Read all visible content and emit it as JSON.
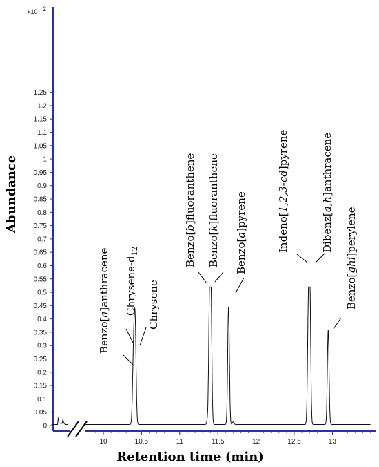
{
  "chart_data": {
    "type": "line",
    "title": "",
    "xlabel": "Retention time (min)",
    "ylabel": "Abundance",
    "y_scale_prefix": "x10",
    "y_scale_exponent": "2",
    "xlim": [
      9.32,
      13.5
    ],
    "ylim": [
      0,
      1.35
    ],
    "x_ticks": [
      "10",
      "10.5",
      "11",
      "11.5",
      "12",
      "12.5",
      "13"
    ],
    "y_ticks": [
      "0",
      "0.05",
      "0.1",
      "0.15",
      "0.2",
      "0.25",
      "0.3",
      "0.35",
      "0.4",
      "0.45",
      "0.5",
      "0.55",
      "0.6",
      "0.65",
      "0.7",
      "0.75",
      "0.8",
      "0.85",
      "0.9",
      "0.95",
      "1",
      "1.05",
      "1.1",
      "1.15",
      "1.2",
      "1.25"
    ],
    "axis_break": true,
    "grid": false,
    "line_color": "#111111",
    "axis_color": "#27359a",
    "initial_segment": {
      "x": [
        9.32,
        9.38,
        9.4,
        9.41,
        9.42,
        9.44,
        9.46,
        9.47,
        9.48,
        9.5,
        9.53
      ],
      "y": [
        0.004,
        0.004,
        0.004,
        0.03,
        0.01,
        0.008,
        0.008,
        0.024,
        0.01,
        0.004,
        0.004
      ]
    },
    "peaks": [
      {
        "name": "Benzo[a]anthracene",
        "rt": 10.39,
        "height": 0.16
      },
      {
        "name": "Chrysene-d12",
        "rt": 10.405,
        "height": 0.24
      },
      {
        "name": "Chrysene",
        "rt": 10.42,
        "height": 0.285
      },
      {
        "name": "Benzo[b]fluoranthene",
        "rt": 11.39,
        "height": 0.43
      },
      {
        "name": "Benzo[k]fluoranthene",
        "rt": 11.41,
        "height": 0.465
      },
      {
        "name": "Benzo[a]pyrene",
        "rt": 11.64,
        "height": 0.44
      },
      {
        "name": "Indeno[1,2,3-cd]pyrene",
        "rt": 12.685,
        "height": 0.4
      },
      {
        "name": "Dibenz[a,h]anthracene",
        "rt": 12.705,
        "height": 0.495
      },
      {
        "name": "Benzo[ghi]perylene",
        "rt": 12.945,
        "height": 0.355
      }
    ],
    "annotations": [
      {
        "parts": [
          {
            "t": "Benzo["
          },
          {
            "t": "a",
            "italic": true
          },
          {
            "t": "]anthracene"
          }
        ],
        "peak": 0
      },
      {
        "parts": [
          {
            "t": "Chrysene-d"
          },
          {
            "t": "12",
            "sub": true
          }
        ],
        "peak": 1
      },
      {
        "parts": [
          {
            "t": "Chrysene"
          }
        ],
        "peak": 2
      },
      {
        "parts": [
          {
            "t": "Benzo["
          },
          {
            "t": "b",
            "italic": true
          },
          {
            "t": "]fluoranthene"
          }
        ],
        "peak": 3
      },
      {
        "parts": [
          {
            "t": "Benzo["
          },
          {
            "t": "k",
            "italic": true
          },
          {
            "t": "]fluoranthene"
          }
        ],
        "peak": 4
      },
      {
        "parts": [
          {
            "t": "Benzo["
          },
          {
            "t": "a",
            "italic": true
          },
          {
            "t": "]pyrene"
          }
        ],
        "peak": 5
      },
      {
        "parts": [
          {
            "t": "Indeno["
          },
          {
            "t": "1,2,3-cd",
            "italic": true
          },
          {
            "t": "]pyrene"
          }
        ],
        "peak": 6
      },
      {
        "parts": [
          {
            "t": "Dibenz["
          },
          {
            "t": "a,h",
            "italic": true
          },
          {
            "t": "]anthracene"
          }
        ],
        "peak": 7
      },
      {
        "parts": [
          {
            "t": "Benzo["
          },
          {
            "t": "ghi",
            "italic": true
          },
          {
            "t": "]perylene"
          }
        ],
        "peak": 8
      }
    ]
  }
}
